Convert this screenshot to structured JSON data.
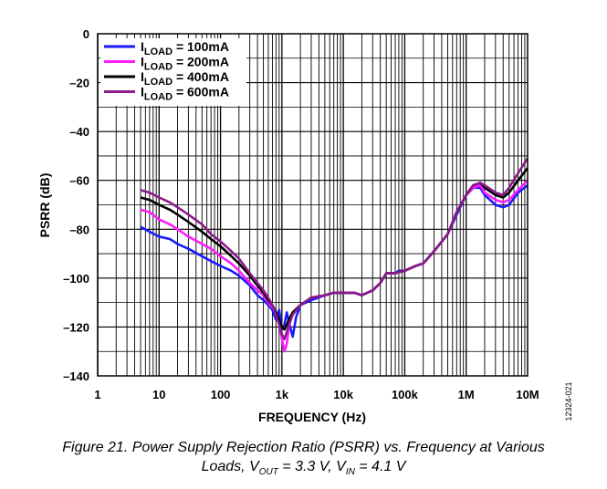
{
  "chart_data": {
    "type": "line",
    "xlabel": "FREQUENCY (Hz)",
    "ylabel": "PSRR (dB)",
    "x_scale": "log",
    "xlim": [
      1,
      10000000
    ],
    "ylim": [
      -140,
      0
    ],
    "grid": true,
    "legend_position": "top-left",
    "x_ticks": [
      {
        "value": 1,
        "label": "1"
      },
      {
        "value": 10,
        "label": "10"
      },
      {
        "value": 100,
        "label": "100"
      },
      {
        "value": 1000,
        "label": "1k"
      },
      {
        "value": 10000,
        "label": "10k"
      },
      {
        "value": 100000,
        "label": "100k"
      },
      {
        "value": 1000000,
        "label": "1M"
      },
      {
        "value": 10000000,
        "label": "10M"
      }
    ],
    "y_ticks": [
      {
        "value": 0,
        "label": "0"
      },
      {
        "value": -20,
        "label": "–20"
      },
      {
        "value": -40,
        "label": "–40"
      },
      {
        "value": -60,
        "label": "–60"
      },
      {
        "value": -80,
        "label": "–80"
      },
      {
        "value": -100,
        "label": "–100"
      },
      {
        "value": -120,
        "label": "–120"
      },
      {
        "value": -140,
        "label": "–140"
      }
    ],
    "series": [
      {
        "name_main": "I",
        "name_sub": "LOAD",
        "name_rest": " = 100mA",
        "color": "#1a1aff",
        "points": [
          [
            5,
            -79
          ],
          [
            7,
            -81
          ],
          [
            10,
            -83
          ],
          [
            15,
            -84
          ],
          [
            20,
            -86
          ],
          [
            30,
            -88
          ],
          [
            50,
            -91
          ],
          [
            70,
            -93
          ],
          [
            100,
            -95
          ],
          [
            150,
            -97
          ],
          [
            200,
            -99
          ],
          [
            300,
            -103
          ],
          [
            400,
            -107
          ],
          [
            500,
            -109
          ],
          [
            600,
            -111
          ],
          [
            700,
            -113
          ],
          [
            800,
            -117
          ],
          [
            900,
            -113
          ],
          [
            1000,
            -121
          ],
          [
            1100,
            -119
          ],
          [
            1200,
            -114
          ],
          [
            1300,
            -118
          ],
          [
            1500,
            -124
          ],
          [
            1700,
            -116
          ],
          [
            2000,
            -111
          ],
          [
            3000,
            -109
          ],
          [
            5000,
            -107
          ],
          [
            7000,
            -106
          ],
          [
            10000,
            -106
          ],
          [
            15000,
            -106
          ],
          [
            20000,
            -107
          ],
          [
            30000,
            -105
          ],
          [
            40000,
            -102
          ],
          [
            50000,
            -98
          ],
          [
            60000,
            -98
          ],
          [
            70000,
            -98
          ],
          [
            80000,
            -97
          ],
          [
            100000,
            -97
          ],
          [
            150000,
            -95
          ],
          [
            200000,
            -94
          ],
          [
            300000,
            -89
          ],
          [
            500000,
            -82
          ],
          [
            700000,
            -74
          ],
          [
            1000000,
            -66
          ],
          [
            1300000,
            -63
          ],
          [
            1700000,
            -63
          ],
          [
            2000000,
            -66
          ],
          [
            3000000,
            -70
          ],
          [
            4000000,
            -71
          ],
          [
            5000000,
            -70
          ],
          [
            7000000,
            -65
          ],
          [
            10000000,
            -62
          ]
        ]
      },
      {
        "name_main": "I",
        "name_sub": "LOAD",
        "name_rest": " = 200mA",
        "color": "#ff1aff",
        "points": [
          [
            5,
            -72
          ],
          [
            7,
            -73
          ],
          [
            10,
            -76
          ],
          [
            15,
            -78
          ],
          [
            20,
            -80
          ],
          [
            30,
            -83
          ],
          [
            50,
            -86
          ],
          [
            70,
            -88
          ],
          [
            100,
            -91
          ],
          [
            150,
            -94
          ],
          [
            200,
            -97
          ],
          [
            300,
            -102
          ],
          [
            400,
            -105
          ],
          [
            500,
            -107
          ],
          [
            600,
            -110
          ],
          [
            700,
            -112
          ],
          [
            800,
            -114
          ],
          [
            900,
            -118
          ],
          [
            1000,
            -125
          ],
          [
            1100,
            -130
          ],
          [
            1200,
            -127
          ],
          [
            1300,
            -120
          ],
          [
            1500,
            -114
          ],
          [
            2000,
            -111
          ],
          [
            3000,
            -108
          ],
          [
            5000,
            -107
          ],
          [
            7000,
            -106
          ],
          [
            10000,
            -106
          ],
          [
            15000,
            -106
          ],
          [
            20000,
            -107
          ],
          [
            30000,
            -105
          ],
          [
            40000,
            -102
          ],
          [
            50000,
            -98
          ],
          [
            70000,
            -98
          ],
          [
            100000,
            -97
          ],
          [
            150000,
            -95
          ],
          [
            200000,
            -94
          ],
          [
            300000,
            -89
          ],
          [
            500000,
            -82
          ],
          [
            700000,
            -73
          ],
          [
            1000000,
            -66
          ],
          [
            1300000,
            -63
          ],
          [
            1700000,
            -62
          ],
          [
            2000000,
            -65
          ],
          [
            3000000,
            -68
          ],
          [
            4000000,
            -69
          ],
          [
            5000000,
            -68
          ],
          [
            7000000,
            -64
          ],
          [
            10000000,
            -60
          ]
        ]
      },
      {
        "name_main": "I",
        "name_sub": "LOAD",
        "name_rest": " = 400mA",
        "color": "#000000",
        "points": [
          [
            5,
            -67
          ],
          [
            7,
            -68
          ],
          [
            10,
            -70
          ],
          [
            15,
            -72
          ],
          [
            20,
            -74
          ],
          [
            30,
            -77
          ],
          [
            50,
            -81
          ],
          [
            70,
            -84
          ],
          [
            100,
            -87
          ],
          [
            150,
            -91
          ],
          [
            200,
            -94
          ],
          [
            300,
            -99
          ],
          [
            400,
            -103
          ],
          [
            500,
            -106
          ],
          [
            600,
            -109
          ],
          [
            700,
            -111
          ],
          [
            800,
            -114
          ],
          [
            900,
            -117
          ],
          [
            1000,
            -120
          ],
          [
            1100,
            -121
          ],
          [
            1200,
            -119
          ],
          [
            1300,
            -117
          ],
          [
            1500,
            -114
          ],
          [
            2000,
            -111
          ],
          [
            3000,
            -108
          ],
          [
            5000,
            -107
          ],
          [
            7000,
            -106
          ],
          [
            10000,
            -106
          ],
          [
            15000,
            -106
          ],
          [
            20000,
            -107
          ],
          [
            30000,
            -105
          ],
          [
            40000,
            -102
          ],
          [
            50000,
            -98
          ],
          [
            70000,
            -98
          ],
          [
            100000,
            -97
          ],
          [
            150000,
            -95
          ],
          [
            200000,
            -94
          ],
          [
            300000,
            -89
          ],
          [
            500000,
            -82
          ],
          [
            700000,
            -73
          ],
          [
            1000000,
            -66
          ],
          [
            1300000,
            -62
          ],
          [
            1700000,
            -61
          ],
          [
            2000000,
            -63
          ],
          [
            3000000,
            -66
          ],
          [
            4000000,
            -67
          ],
          [
            5000000,
            -65
          ],
          [
            7000000,
            -60
          ],
          [
            10000000,
            -55
          ]
        ]
      },
      {
        "name_main": "I",
        "name_sub": "LOAD",
        "name_rest": " = 600mA",
        "color": "#8b1a8b",
        "points": [
          [
            5,
            -64
          ],
          [
            7,
            -65
          ],
          [
            10,
            -67
          ],
          [
            15,
            -69
          ],
          [
            20,
            -71
          ],
          [
            30,
            -74
          ],
          [
            50,
            -78
          ],
          [
            70,
            -82
          ],
          [
            100,
            -85
          ],
          [
            150,
            -89
          ],
          [
            200,
            -92
          ],
          [
            300,
            -98
          ],
          [
            400,
            -102
          ],
          [
            500,
            -105
          ],
          [
            600,
            -108
          ],
          [
            700,
            -111
          ],
          [
            800,
            -115
          ],
          [
            900,
            -119
          ],
          [
            1000,
            -123
          ],
          [
            1100,
            -125
          ],
          [
            1200,
            -122
          ],
          [
            1300,
            -119
          ],
          [
            1500,
            -115
          ],
          [
            2000,
            -111
          ],
          [
            3000,
            -108
          ],
          [
            5000,
            -107
          ],
          [
            7000,
            -106
          ],
          [
            10000,
            -106
          ],
          [
            15000,
            -106
          ],
          [
            20000,
            -107
          ],
          [
            30000,
            -105
          ],
          [
            40000,
            -102
          ],
          [
            50000,
            -98
          ],
          [
            70000,
            -98
          ],
          [
            100000,
            -97
          ],
          [
            150000,
            -95
          ],
          [
            200000,
            -94
          ],
          [
            300000,
            -89
          ],
          [
            500000,
            -82
          ],
          [
            700000,
            -73
          ],
          [
            1000000,
            -66
          ],
          [
            1300000,
            -62
          ],
          [
            1700000,
            -61
          ],
          [
            2000000,
            -62
          ],
          [
            3000000,
            -65
          ],
          [
            4000000,
            -66
          ],
          [
            5000000,
            -63
          ],
          [
            7000000,
            -57
          ],
          [
            10000000,
            -51
          ]
        ]
      }
    ],
    "figure_code": "12324-021",
    "caption": {
      "line1": "Figure 21. Power Supply Rejection Ratio (PSRR) vs. Frequency at Various",
      "line2_prefix": "Loads, V",
      "vout_sub": "OUT",
      "vout_value": " = 3.3 V, V",
      "vin_sub": "IN",
      "vin_value": " = 4.1 V"
    }
  }
}
